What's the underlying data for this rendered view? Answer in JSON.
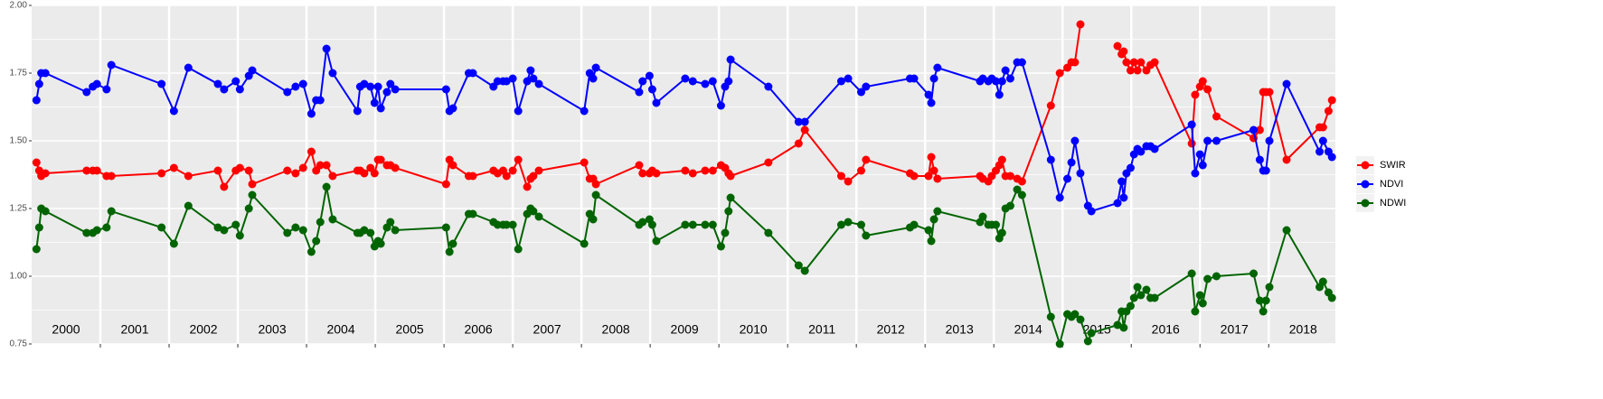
{
  "chart_data": {
    "type": "line",
    "x": [
      2000.07,
      2000.11,
      2000.14,
      2000.2,
      2000.8,
      2000.89,
      2000.95,
      2001.09,
      2001.16,
      2001.89,
      2002.07,
      2002.28,
      2002.71,
      2002.8,
      2002.97,
      2003.03,
      2003.16,
      2003.21,
      2003.72,
      2003.84,
      2003.95,
      2004.07,
      2004.14,
      2004.2,
      2004.29,
      2004.38,
      2004.74,
      2004.78,
      2004.84,
      2004.93,
      2004.99,
      2005.04,
      2005.08,
      2005.17,
      2005.22,
      2005.29,
      2006.03,
      2006.08,
      2006.13,
      2006.36,
      2006.42,
      2006.72,
      2006.78,
      2006.86,
      2006.91,
      2007,
      2007.08,
      2007.21,
      2007.26,
      2007.3,
      2007.38,
      2008.04,
      2008.12,
      2008.17,
      2008.21,
      2008.84,
      2008.89,
      2008.99,
      2009.03,
      2009.09,
      2009.51,
      2009.62,
      2009.8,
      2009.91,
      2010.03,
      2010.09,
      2010.14,
      2010.17,
      2010.72,
      2011.16,
      2011.25,
      2011.78,
      2011.88,
      2012.07,
      2012.14,
      2012.78,
      2012.84,
      2013.05,
      2013.09,
      2013.13,
      2013.18,
      2013.8,
      2013.84,
      2013.92,
      2013.97,
      2014.03,
      2014.08,
      2014.12,
      2014.17,
      2014.24,
      2014.34,
      2014.41,
      2014.83,
      2014.96,
      2015.07,
      2015.13,
      2015.18,
      2015.26,
      2015.37,
      2015.42,
      2015.8,
      2015.86,
      2015.89,
      2015.93,
      2015.99,
      2016.04,
      2016.09,
      2016.14,
      2016.22,
      2016.28,
      2016.34,
      2016.88,
      2016.93,
      2017,
      2017.04,
      2017.11,
      2017.24,
      2017.78,
      2017.87,
      2017.92,
      2017.96,
      2018.01,
      2018.26,
      2018.74,
      2018.79,
      2018.87,
      2018.92
    ],
    "series": [
      {
        "name": "SWIR",
        "color": "#ff0000",
        "values": [
          1.42,
          1.39,
          1.37,
          1.38,
          1.39,
          1.39,
          1.39,
          1.37,
          1.37,
          1.38,
          1.4,
          1.37,
          1.39,
          1.33,
          1.39,
          1.4,
          1.39,
          1.34,
          1.39,
          1.38,
          1.4,
          1.46,
          1.39,
          1.41,
          1.41,
          1.37,
          1.39,
          1.39,
          1.38,
          1.4,
          1.38,
          1.43,
          1.43,
          1.41,
          1.41,
          1.4,
          1.34,
          1.43,
          1.41,
          1.37,
          1.37,
          1.39,
          1.38,
          1.39,
          1.37,
          1.39,
          1.43,
          1.33,
          1.36,
          1.37,
          1.39,
          1.42,
          1.36,
          1.36,
          1.34,
          1.41,
          1.38,
          1.38,
          1.39,
          1.38,
          1.39,
          1.38,
          1.39,
          1.39,
          1.41,
          1.4,
          1.38,
          1.37,
          1.42,
          1.49,
          1.54,
          1.37,
          1.35,
          1.39,
          1.43,
          1.38,
          1.37,
          1.37,
          1.44,
          1.39,
          1.36,
          1.37,
          1.36,
          1.35,
          1.37,
          1.39,
          1.41,
          1.43,
          1.37,
          1.37,
          1.36,
          1.35,
          1.63,
          1.75,
          1.77,
          1.79,
          1.79,
          1.93,
          null,
          null,
          1.85,
          1.82,
          1.83,
          1.79,
          1.76,
          1.79,
          1.76,
          1.79,
          1.76,
          1.78,
          1.79,
          1.49,
          1.67,
          1.7,
          1.72,
          1.69,
          1.59,
          1.51,
          1.54,
          1.68,
          1.68,
          1.68,
          1.43,
          1.55,
          1.55,
          1.61,
          1.65
        ]
      },
      {
        "name": "NDVI",
        "color": "#0000ff",
        "values": [
          1.65,
          1.71,
          1.75,
          1.75,
          1.68,
          1.7,
          1.71,
          1.69,
          1.78,
          1.71,
          1.61,
          1.77,
          1.71,
          1.69,
          1.72,
          1.69,
          1.74,
          1.76,
          1.68,
          1.7,
          1.71,
          1.6,
          1.65,
          1.65,
          1.84,
          1.75,
          1.61,
          1.7,
          1.71,
          1.7,
          1.64,
          1.7,
          1.62,
          1.68,
          1.71,
          1.69,
          1.69,
          1.61,
          1.62,
          1.75,
          1.75,
          1.7,
          1.72,
          1.72,
          1.72,
          1.73,
          1.61,
          1.72,
          1.76,
          1.73,
          1.71,
          1.61,
          1.75,
          1.73,
          1.77,
          1.68,
          1.72,
          1.74,
          1.69,
          1.64,
          1.73,
          1.72,
          1.71,
          1.72,
          1.63,
          1.7,
          1.72,
          1.8,
          1.7,
          1.57,
          1.57,
          1.72,
          1.73,
          1.68,
          1.7,
          1.73,
          1.73,
          1.67,
          1.64,
          1.73,
          1.77,
          1.72,
          1.73,
          1.72,
          1.73,
          1.72,
          1.67,
          1.72,
          1.76,
          1.73,
          1.79,
          1.79,
          1.43,
          1.29,
          1.36,
          1.42,
          1.5,
          1.38,
          1.26,
          1.24,
          1.27,
          1.35,
          1.29,
          1.38,
          1.4,
          1.45,
          1.47,
          1.46,
          1.48,
          1.48,
          1.47,
          1.56,
          1.38,
          1.45,
          1.41,
          1.5,
          1.5,
          1.54,
          1.43,
          1.39,
          1.39,
          1.5,
          1.71,
          1.46,
          1.5,
          1.46,
          1.44
        ]
      },
      {
        "name": "NDWI",
        "color": "#006400",
        "values": [
          1.1,
          1.18,
          1.25,
          1.24,
          1.16,
          1.16,
          1.17,
          1.18,
          1.24,
          1.18,
          1.12,
          1.26,
          1.18,
          1.17,
          1.19,
          1.15,
          1.25,
          1.3,
          1.16,
          1.18,
          1.17,
          1.09,
          1.13,
          1.2,
          1.33,
          1.21,
          1.16,
          1.16,
          1.17,
          1.16,
          1.11,
          1.13,
          1.12,
          1.18,
          1.2,
          1.17,
          1.18,
          1.09,
          1.12,
          1.23,
          1.23,
          1.2,
          1.19,
          1.19,
          1.19,
          1.19,
          1.1,
          1.23,
          1.25,
          1.24,
          1.22,
          1.12,
          1.23,
          1.21,
          1.3,
          1.19,
          1.2,
          1.21,
          1.19,
          1.13,
          1.19,
          1.19,
          1.19,
          1.19,
          1.11,
          1.16,
          1.24,
          1.29,
          1.16,
          1.04,
          1.02,
          1.19,
          1.2,
          1.19,
          1.15,
          1.18,
          1.19,
          1.17,
          1.13,
          1.21,
          1.24,
          1.2,
          1.22,
          1.19,
          1.19,
          1.19,
          1.14,
          1.16,
          1.25,
          1.26,
          1.32,
          1.3,
          0.85,
          0.75,
          0.86,
          0.85,
          0.86,
          0.84,
          0.76,
          0.79,
          0.82,
          0.87,
          0.81,
          0.87,
          0.89,
          0.92,
          0.96,
          0.93,
          0.95,
          0.92,
          0.92,
          1.01,
          0.87,
          0.93,
          0.9,
          0.99,
          1.0,
          1.01,
          0.91,
          0.87,
          0.91,
          0.96,
          1.17,
          0.96,
          0.98,
          0.94,
          0.92
        ]
      }
    ],
    "year_labels": [
      "2000",
      "2001",
      "2002",
      "2003",
      "2004",
      "2005",
      "2006",
      "2007",
      "2008",
      "2009",
      "2010",
      "2011",
      "2012",
      "2013",
      "2014",
      "2015",
      "2016",
      "2017",
      "2018"
    ],
    "xlim": [
      2000,
      2018.97
    ],
    "xticks": [
      2001,
      2002,
      2003,
      2004,
      2005,
      2006,
      2007,
      2008,
      2009,
      2010,
      2011,
      2012,
      2013,
      2014,
      2015,
      2016,
      2017,
      2018
    ],
    "ylim": [
      0.75,
      2.0
    ],
    "yticks": [
      {
        "value": 0.75,
        "label": "0.75"
      },
      {
        "value": 1.0,
        "label": "1.00"
      },
      {
        "value": 1.25,
        "label": "1.25"
      },
      {
        "value": 1.5,
        "label": "1.50"
      },
      {
        "value": 1.75,
        "label": "1.75"
      },
      {
        "value": 2.0,
        "label": "2.00"
      }
    ],
    "grid": true,
    "legend": "right"
  }
}
